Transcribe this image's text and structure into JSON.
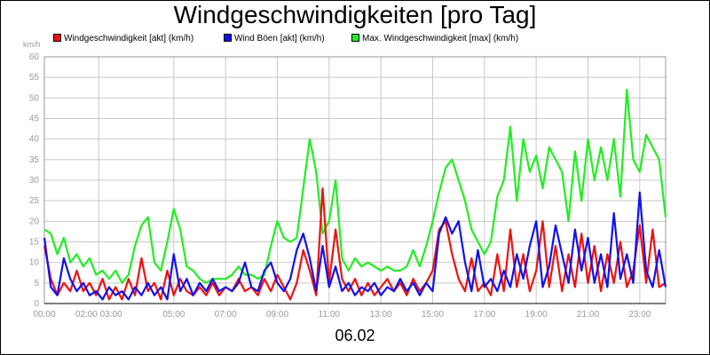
{
  "chart_data": {
    "type": "line",
    "title": "Windgeschwindigkeiten [pro Tag]",
    "date_label": "06.02",
    "yunit": "km/h",
    "ylim": [
      0,
      60
    ],
    "yticks": [
      0,
      5,
      10,
      15,
      20,
      25,
      30,
      35,
      40,
      45,
      50,
      55,
      60
    ],
    "xlim": [
      0,
      24
    ],
    "xticks": [
      {
        "t": 0,
        "label": "00:00"
      },
      {
        "t": 2.1,
        "label": "02:00 03:00"
      },
      {
        "t": 5,
        "label": "05:00"
      },
      {
        "t": 7,
        "label": "07:00"
      },
      {
        "t": 9,
        "label": "09:00"
      },
      {
        "t": 11,
        "label": "11:00"
      },
      {
        "t": 13,
        "label": "13:00"
      },
      {
        "t": 15,
        "label": "15:00"
      },
      {
        "t": 17,
        "label": "17:00"
      },
      {
        "t": 19,
        "label": "19:00"
      },
      {
        "t": 21,
        "label": "21:00"
      },
      {
        "t": 23,
        "label": "23:00"
      }
    ],
    "grid": true,
    "legend_position": "top",
    "series": [
      {
        "name": "Windgeschwindigkeit [akt] (km/h)",
        "color": "#ee1111",
        "points": [
          [
            0,
            14
          ],
          [
            0.25,
            6
          ],
          [
            0.5,
            2
          ],
          [
            0.75,
            5
          ],
          [
            1,
            3
          ],
          [
            1.25,
            8
          ],
          [
            1.5,
            3
          ],
          [
            1.75,
            5
          ],
          [
            2,
            2
          ],
          [
            2.25,
            6
          ],
          [
            2.5,
            1
          ],
          [
            2.75,
            4
          ],
          [
            3,
            1
          ],
          [
            3.25,
            6
          ],
          [
            3.5,
            2
          ],
          [
            3.75,
            11
          ],
          [
            4,
            3
          ],
          [
            4.25,
            5
          ],
          [
            4.5,
            1
          ],
          [
            4.75,
            8
          ],
          [
            5,
            2
          ],
          [
            5.25,
            6
          ],
          [
            5.5,
            3
          ],
          [
            5.75,
            2
          ],
          [
            6,
            4
          ],
          [
            6.25,
            2
          ],
          [
            6.5,
            5
          ],
          [
            6.75,
            2
          ],
          [
            7,
            4
          ],
          [
            7.25,
            3
          ],
          [
            7.5,
            6
          ],
          [
            7.75,
            3
          ],
          [
            8,
            4
          ],
          [
            8.25,
            2
          ],
          [
            8.5,
            6
          ],
          [
            8.75,
            3
          ],
          [
            9,
            7
          ],
          [
            9.25,
            4
          ],
          [
            9.5,
            1
          ],
          [
            9.75,
            5
          ],
          [
            10,
            13
          ],
          [
            10.25,
            8
          ],
          [
            10.5,
            2
          ],
          [
            10.75,
            28
          ],
          [
            11,
            5
          ],
          [
            11.25,
            18
          ],
          [
            11.5,
            6
          ],
          [
            11.75,
            3
          ],
          [
            12,
            6
          ],
          [
            12.25,
            2
          ],
          [
            12.5,
            5
          ],
          [
            12.75,
            2
          ],
          [
            13,
            4
          ],
          [
            13.25,
            6
          ],
          [
            13.5,
            3
          ],
          [
            13.75,
            5
          ],
          [
            14,
            2
          ],
          [
            14.25,
            6
          ],
          [
            14.5,
            3
          ],
          [
            14.75,
            5
          ],
          [
            15,
            8
          ],
          [
            15.25,
            18
          ],
          [
            15.5,
            20
          ],
          [
            15.75,
            12
          ],
          [
            16,
            6
          ],
          [
            16.25,
            3
          ],
          [
            16.5,
            11
          ],
          [
            16.75,
            3
          ],
          [
            17,
            5
          ],
          [
            17.25,
            2
          ],
          [
            17.5,
            12
          ],
          [
            17.75,
            3
          ],
          [
            18,
            18
          ],
          [
            18.25,
            4
          ],
          [
            18.5,
            12
          ],
          [
            18.75,
            3
          ],
          [
            19,
            8
          ],
          [
            19.25,
            20
          ],
          [
            19.5,
            4
          ],
          [
            19.75,
            14
          ],
          [
            20,
            3
          ],
          [
            20.25,
            12
          ],
          [
            20.5,
            4
          ],
          [
            20.75,
            17
          ],
          [
            21,
            5
          ],
          [
            21.25,
            14
          ],
          [
            21.5,
            3
          ],
          [
            21.75,
            12
          ],
          [
            22,
            5
          ],
          [
            22.25,
            15
          ],
          [
            22.5,
            4
          ],
          [
            22.75,
            8
          ],
          [
            23,
            19
          ],
          [
            23.25,
            5
          ],
          [
            23.5,
            18
          ],
          [
            23.75,
            4
          ],
          [
            24,
            5
          ]
        ]
      },
      {
        "name": "Wind Böen [akt] (km/h)",
        "color": "#1111ee",
        "points": [
          [
            0,
            16
          ],
          [
            0.25,
            4
          ],
          [
            0.5,
            2
          ],
          [
            0.75,
            11
          ],
          [
            1,
            6
          ],
          [
            1.25,
            3
          ],
          [
            1.5,
            5
          ],
          [
            1.75,
            2
          ],
          [
            2,
            3
          ],
          [
            2.25,
            1
          ],
          [
            2.5,
            4
          ],
          [
            2.75,
            2
          ],
          [
            3,
            3
          ],
          [
            3.25,
            1
          ],
          [
            3.5,
            4
          ],
          [
            3.75,
            2
          ],
          [
            4,
            5
          ],
          [
            4.25,
            2
          ],
          [
            4.5,
            4
          ],
          [
            4.75,
            1
          ],
          [
            5,
            12
          ],
          [
            5.25,
            3
          ],
          [
            5.5,
            6
          ],
          [
            5.75,
            2
          ],
          [
            6,
            5
          ],
          [
            6.25,
            3
          ],
          [
            6.5,
            6
          ],
          [
            6.75,
            3
          ],
          [
            7,
            4
          ],
          [
            7.25,
            3
          ],
          [
            7.5,
            5
          ],
          [
            7.75,
            10
          ],
          [
            8,
            4
          ],
          [
            8.25,
            3
          ],
          [
            8.5,
            8
          ],
          [
            8.75,
            10
          ],
          [
            9,
            5
          ],
          [
            9.25,
            3
          ],
          [
            9.5,
            6
          ],
          [
            9.75,
            13
          ],
          [
            10,
            17
          ],
          [
            10.25,
            11
          ],
          [
            10.5,
            3
          ],
          [
            10.75,
            14
          ],
          [
            11,
            4
          ],
          [
            11.25,
            9
          ],
          [
            11.5,
            3
          ],
          [
            11.75,
            5
          ],
          [
            12,
            2
          ],
          [
            12.25,
            4
          ],
          [
            12.5,
            3
          ],
          [
            12.75,
            5
          ],
          [
            13,
            2
          ],
          [
            13.25,
            4
          ],
          [
            13.5,
            3
          ],
          [
            13.75,
            6
          ],
          [
            14,
            3
          ],
          [
            14.25,
            5
          ],
          [
            14.5,
            2
          ],
          [
            14.75,
            5
          ],
          [
            15,
            3
          ],
          [
            15.25,
            17
          ],
          [
            15.5,
            21
          ],
          [
            15.75,
            17
          ],
          [
            16,
            20
          ],
          [
            16.25,
            10
          ],
          [
            16.5,
            3
          ],
          [
            16.75,
            13
          ],
          [
            17,
            4
          ],
          [
            17.25,
            6
          ],
          [
            17.5,
            3
          ],
          [
            17.75,
            8
          ],
          [
            18,
            4
          ],
          [
            18.25,
            12
          ],
          [
            18.5,
            6
          ],
          [
            18.75,
            14
          ],
          [
            19,
            20
          ],
          [
            19.25,
            4
          ],
          [
            19.5,
            9
          ],
          [
            19.75,
            19
          ],
          [
            20,
            12
          ],
          [
            20.25,
            5
          ],
          [
            20.5,
            18
          ],
          [
            20.75,
            8
          ],
          [
            21,
            16
          ],
          [
            21.25,
            5
          ],
          [
            21.5,
            12
          ],
          [
            21.75,
            4
          ],
          [
            22,
            22
          ],
          [
            22.25,
            6
          ],
          [
            22.5,
            12
          ],
          [
            22.75,
            5
          ],
          [
            23,
            27
          ],
          [
            23.25,
            8
          ],
          [
            23.5,
            4
          ],
          [
            23.75,
            13
          ],
          [
            24,
            4
          ]
        ]
      },
      {
        "name": "Max. Windgeschwindigkeit [max] (km/h)",
        "color": "#22ee22",
        "points": [
          [
            0,
            18
          ],
          [
            0.25,
            17
          ],
          [
            0.5,
            12
          ],
          [
            0.75,
            16
          ],
          [
            1,
            10
          ],
          [
            1.25,
            12
          ],
          [
            1.5,
            9
          ],
          [
            1.75,
            11
          ],
          [
            2,
            7
          ],
          [
            2.25,
            8
          ],
          [
            2.5,
            6
          ],
          [
            2.75,
            8
          ],
          [
            3,
            5
          ],
          [
            3.25,
            7
          ],
          [
            3.5,
            14
          ],
          [
            3.75,
            19
          ],
          [
            4,
            21
          ],
          [
            4.25,
            10
          ],
          [
            4.5,
            8
          ],
          [
            4.75,
            15
          ],
          [
            5,
            23
          ],
          [
            5.25,
            18
          ],
          [
            5.5,
            9
          ],
          [
            5.75,
            8
          ],
          [
            6,
            6
          ],
          [
            6.25,
            5
          ],
          [
            6.5,
            6
          ],
          [
            6.75,
            6
          ],
          [
            7,
            6
          ],
          [
            7.25,
            7
          ],
          [
            7.5,
            9
          ],
          [
            7.75,
            7
          ],
          [
            8,
            7
          ],
          [
            8.25,
            6
          ],
          [
            8.5,
            7
          ],
          [
            8.75,
            14
          ],
          [
            9,
            20
          ],
          [
            9.25,
            16
          ],
          [
            9.5,
            15
          ],
          [
            9.75,
            16
          ],
          [
            10,
            28
          ],
          [
            10.25,
            40
          ],
          [
            10.5,
            32
          ],
          [
            10.75,
            17
          ],
          [
            11,
            20
          ],
          [
            11.25,
            30
          ],
          [
            11.5,
            11
          ],
          [
            11.75,
            8
          ],
          [
            12,
            11
          ],
          [
            12.25,
            9
          ],
          [
            12.5,
            10
          ],
          [
            12.75,
            9
          ],
          [
            13,
            8
          ],
          [
            13.25,
            9
          ],
          [
            13.5,
            8
          ],
          [
            13.75,
            8
          ],
          [
            14,
            9
          ],
          [
            14.25,
            13
          ],
          [
            14.5,
            9
          ],
          [
            14.75,
            14
          ],
          [
            15,
            20
          ],
          [
            15.25,
            27
          ],
          [
            15.5,
            33
          ],
          [
            15.75,
            35
          ],
          [
            16,
            30
          ],
          [
            16.25,
            25
          ],
          [
            16.5,
            18
          ],
          [
            16.75,
            15
          ],
          [
            17,
            12
          ],
          [
            17.25,
            15
          ],
          [
            17.5,
            26
          ],
          [
            17.75,
            30
          ],
          [
            18,
            43
          ],
          [
            18.25,
            25
          ],
          [
            18.5,
            40
          ],
          [
            18.75,
            32
          ],
          [
            19,
            36
          ],
          [
            19.25,
            28
          ],
          [
            19.5,
            38
          ],
          [
            19.75,
            35
          ],
          [
            20,
            32
          ],
          [
            20.25,
            20
          ],
          [
            20.5,
            37
          ],
          [
            20.75,
            25
          ],
          [
            21,
            40
          ],
          [
            21.25,
            30
          ],
          [
            21.5,
            38
          ],
          [
            21.75,
            30
          ],
          [
            22,
            40
          ],
          [
            22.25,
            26
          ],
          [
            22.5,
            52
          ],
          [
            22.75,
            35
          ],
          [
            23,
            32
          ],
          [
            23.25,
            41
          ],
          [
            23.5,
            38
          ],
          [
            23.75,
            35
          ],
          [
            24,
            21
          ]
        ]
      }
    ]
  }
}
